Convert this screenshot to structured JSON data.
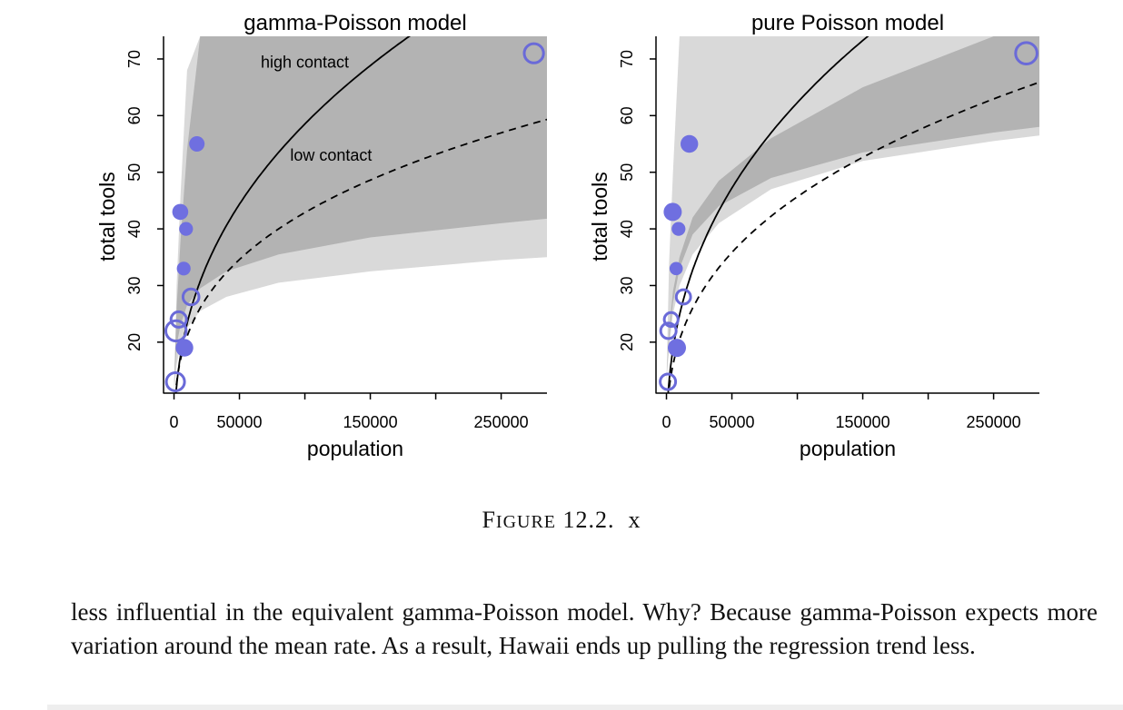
{
  "caption": {
    "figure_word": "Figure",
    "figure_number": "12.2.",
    "text": "x"
  },
  "body_text": "less influential in the equivalent gamma-Poisson model. Why? Because gamma-Poisson expects more variation around the mean rate. As a result, Hawaii ends up pulling the regression trend less.",
  "colors": {
    "band_outer": "#d9d9d9",
    "band_inner": "#b3b3b3",
    "point": "#6f6fe0",
    "point_stroke": "#6a6ad8",
    "curve": "#000000"
  },
  "chart_data": [
    {
      "type": "scatter",
      "title": "gamma-Poisson model",
      "xlabel": "population",
      "ylabel": "total tools",
      "xlim": [
        -8000,
        285000
      ],
      "ylim": [
        11,
        74
      ],
      "xticks": [
        0,
        50000,
        100000,
        150000,
        200000,
        250000
      ],
      "xtick_labels": [
        "0",
        "50000",
        "",
        "150000",
        "",
        "250000"
      ],
      "yticks": [
        20,
        30,
        40,
        50,
        60,
        70
      ],
      "ytick_labels": [
        "20",
        "30",
        "40",
        "50",
        "60",
        "70"
      ],
      "annotations": [
        {
          "text": "high contact",
          "x": 100000,
          "y": 68.5
        },
        {
          "text": "low contact",
          "x": 120000,
          "y": 52
        }
      ],
      "curves": [
        {
          "name": "high contact",
          "style": "solid",
          "a": 23.3,
          "b": 0.4
        },
        {
          "name": "low contact",
          "style": "dashed",
          "a": 21.0,
          "b": 0.31
        }
      ],
      "bands": [
        {
          "level": "outer",
          "x": [
            0,
            2000,
            5000,
            10000,
            20000,
            40000,
            80000,
            150000,
            250000,
            285000
          ],
          "lower": [
            11,
            16,
            19.5,
            22.5,
            25.5,
            28,
            30.5,
            32.5,
            34.5,
            35
          ],
          "upper": [
            11,
            30,
            46,
            68,
            74,
            74,
            74,
            74,
            74,
            74
          ]
        },
        {
          "level": "inner",
          "x": [
            0,
            2000,
            5000,
            10000,
            20000,
            40000,
            80000,
            150000,
            250000,
            285000
          ],
          "lower": [
            12,
            19.5,
            23,
            26.5,
            29.5,
            32.5,
            35.5,
            38.5,
            41,
            41.8
          ],
          "upper": [
            12,
            26,
            38,
            54,
            74,
            74,
            74,
            74,
            74,
            74
          ]
        }
      ],
      "points": [
        {
          "x": 1100,
          "y": 13,
          "contact": "low",
          "size": 1.0
        },
        {
          "x": 1500,
          "y": 22,
          "contact": "low",
          "size": 1.2
        },
        {
          "x": 3600,
          "y": 24,
          "contact": "low",
          "size": 0.75
        },
        {
          "x": 4800,
          "y": 43,
          "contact": "high",
          "size": 0.8
        },
        {
          "x": 7400,
          "y": 33,
          "contact": "high",
          "size": 0.6
        },
        {
          "x": 8000,
          "y": 19,
          "contact": "high",
          "size": 0.95
        },
        {
          "x": 9200,
          "y": 40,
          "contact": "high",
          "size": 0.6
        },
        {
          "x": 13000,
          "y": 28,
          "contact": "low",
          "size": 0.8
        },
        {
          "x": 17500,
          "y": 55,
          "contact": "high",
          "size": 0.75
        },
        {
          "x": 275000,
          "y": 71,
          "contact": "low",
          "size": 1.1
        }
      ]
    },
    {
      "type": "scatter",
      "title": "pure Poisson model",
      "xlabel": "population",
      "ylabel": "total tools",
      "xlim": [
        -8000,
        285000
      ],
      "ylim": [
        11,
        74
      ],
      "xticks": [
        0,
        50000,
        100000,
        150000,
        200000,
        250000
      ],
      "xtick_labels": [
        "0",
        "50000",
        "",
        "150000",
        "",
        "250000"
      ],
      "yticks": [
        20,
        30,
        40,
        50,
        60,
        70
      ],
      "ytick_labels": [
        "20",
        "30",
        "40",
        "50",
        "60",
        "70"
      ],
      "annotations": [],
      "curves": [
        {
          "name": "high contact",
          "style": "solid",
          "a": 24.8,
          "b": 0.4
        },
        {
          "name": "low contact",
          "style": "dashed",
          "a": 20.4,
          "b": 0.35
        }
      ],
      "bands": [
        {
          "level": "outer",
          "x": [
            0,
            2000,
            5000,
            10000,
            20000,
            40000,
            80000,
            150000,
            250000,
            285000
          ],
          "lower": [
            13,
            19,
            25,
            30,
            35.5,
            41,
            47,
            52,
            55.5,
            56.5
          ],
          "upper": [
            13,
            34,
            50,
            74,
            74,
            74,
            74,
            74,
            74,
            74
          ]
        },
        {
          "level": "inner",
          "x": [
            0,
            2000,
            5000,
            10000,
            20000,
            40000,
            80000,
            150000,
            250000,
            285000
          ],
          "lower": [
            13,
            20.5,
            27,
            33,
            39,
            44,
            49,
            53.5,
            57,
            58
          ],
          "upper": [
            13,
            22,
            29,
            35,
            42,
            48.5,
            56,
            65,
            74,
            74
          ]
        }
      ],
      "points": [
        {
          "x": 1100,
          "y": 13,
          "contact": "low",
          "size": 0.75
        },
        {
          "x": 1500,
          "y": 22,
          "contact": "low",
          "size": 0.75
        },
        {
          "x": 3600,
          "y": 24,
          "contact": "low",
          "size": 0.6
        },
        {
          "x": 4800,
          "y": 43,
          "contact": "high",
          "size": 1.0
        },
        {
          "x": 7400,
          "y": 33,
          "contact": "high",
          "size": 0.55
        },
        {
          "x": 8000,
          "y": 19,
          "contact": "high",
          "size": 1.0
        },
        {
          "x": 9200,
          "y": 40,
          "contact": "high",
          "size": 0.6
        },
        {
          "x": 13000,
          "y": 28,
          "contact": "low",
          "size": 0.65
        },
        {
          "x": 17500,
          "y": 55,
          "contact": "high",
          "size": 0.95
        },
        {
          "x": 275000,
          "y": 71,
          "contact": "low",
          "size": 1.3
        }
      ]
    }
  ]
}
